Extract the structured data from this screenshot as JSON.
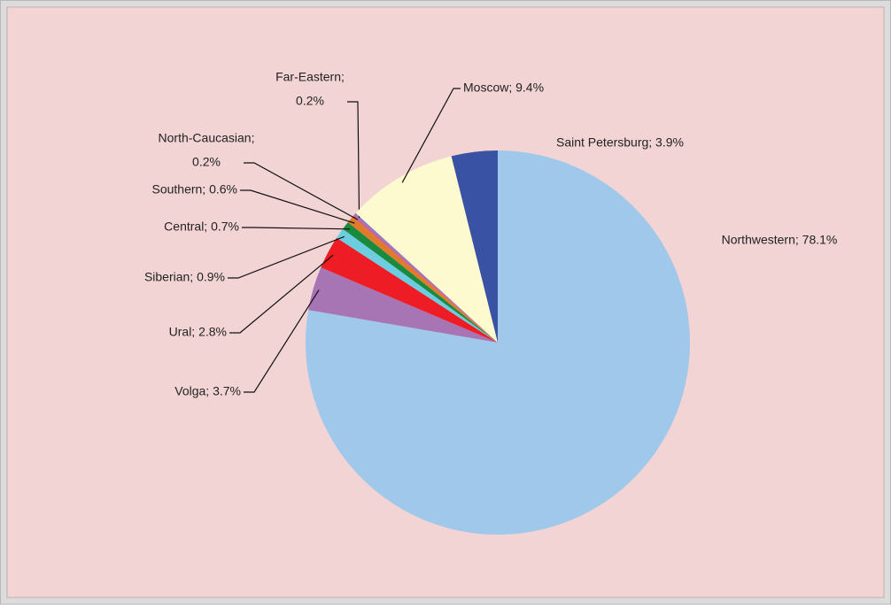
{
  "chart_data": {
    "type": "pie",
    "categories": [
      "Northwestern",
      "Volga",
      "Ural",
      "Siberian",
      "Central",
      "Southern",
      "North-Caucasian",
      "Far-Eastern",
      "Moscow",
      "Saint Petersburg"
    ],
    "values": [
      78.1,
      3.7,
      2.8,
      0.9,
      0.7,
      0.6,
      0.2,
      0.2,
      9.4,
      3.9
    ],
    "value_labels": [
      [
        "Northwestern; 78.1%"
      ],
      [
        "Volga; 3.7%"
      ],
      [
        "Ural; 2.8%"
      ],
      [
        "Siberian; 0.9%"
      ],
      [
        "Central; 0.7%"
      ],
      [
        "Southern; 0.6%"
      ],
      [
        "North-Caucasian;",
        "0.2%"
      ],
      [
        "Far-Eastern;",
        "0.2%"
      ],
      [
        "Moscow; 9.4%"
      ],
      [
        "Saint Petersburg; 3.9%"
      ]
    ],
    "colors": [
      "#9fc8ea",
      "#a774b4",
      "#ee1c25",
      "#6dcde0",
      "#1a8a3e",
      "#e07b2a",
      "#d05f8f",
      "#8e7ac0",
      "#fdfad0",
      "#3a52a3"
    ]
  }
}
